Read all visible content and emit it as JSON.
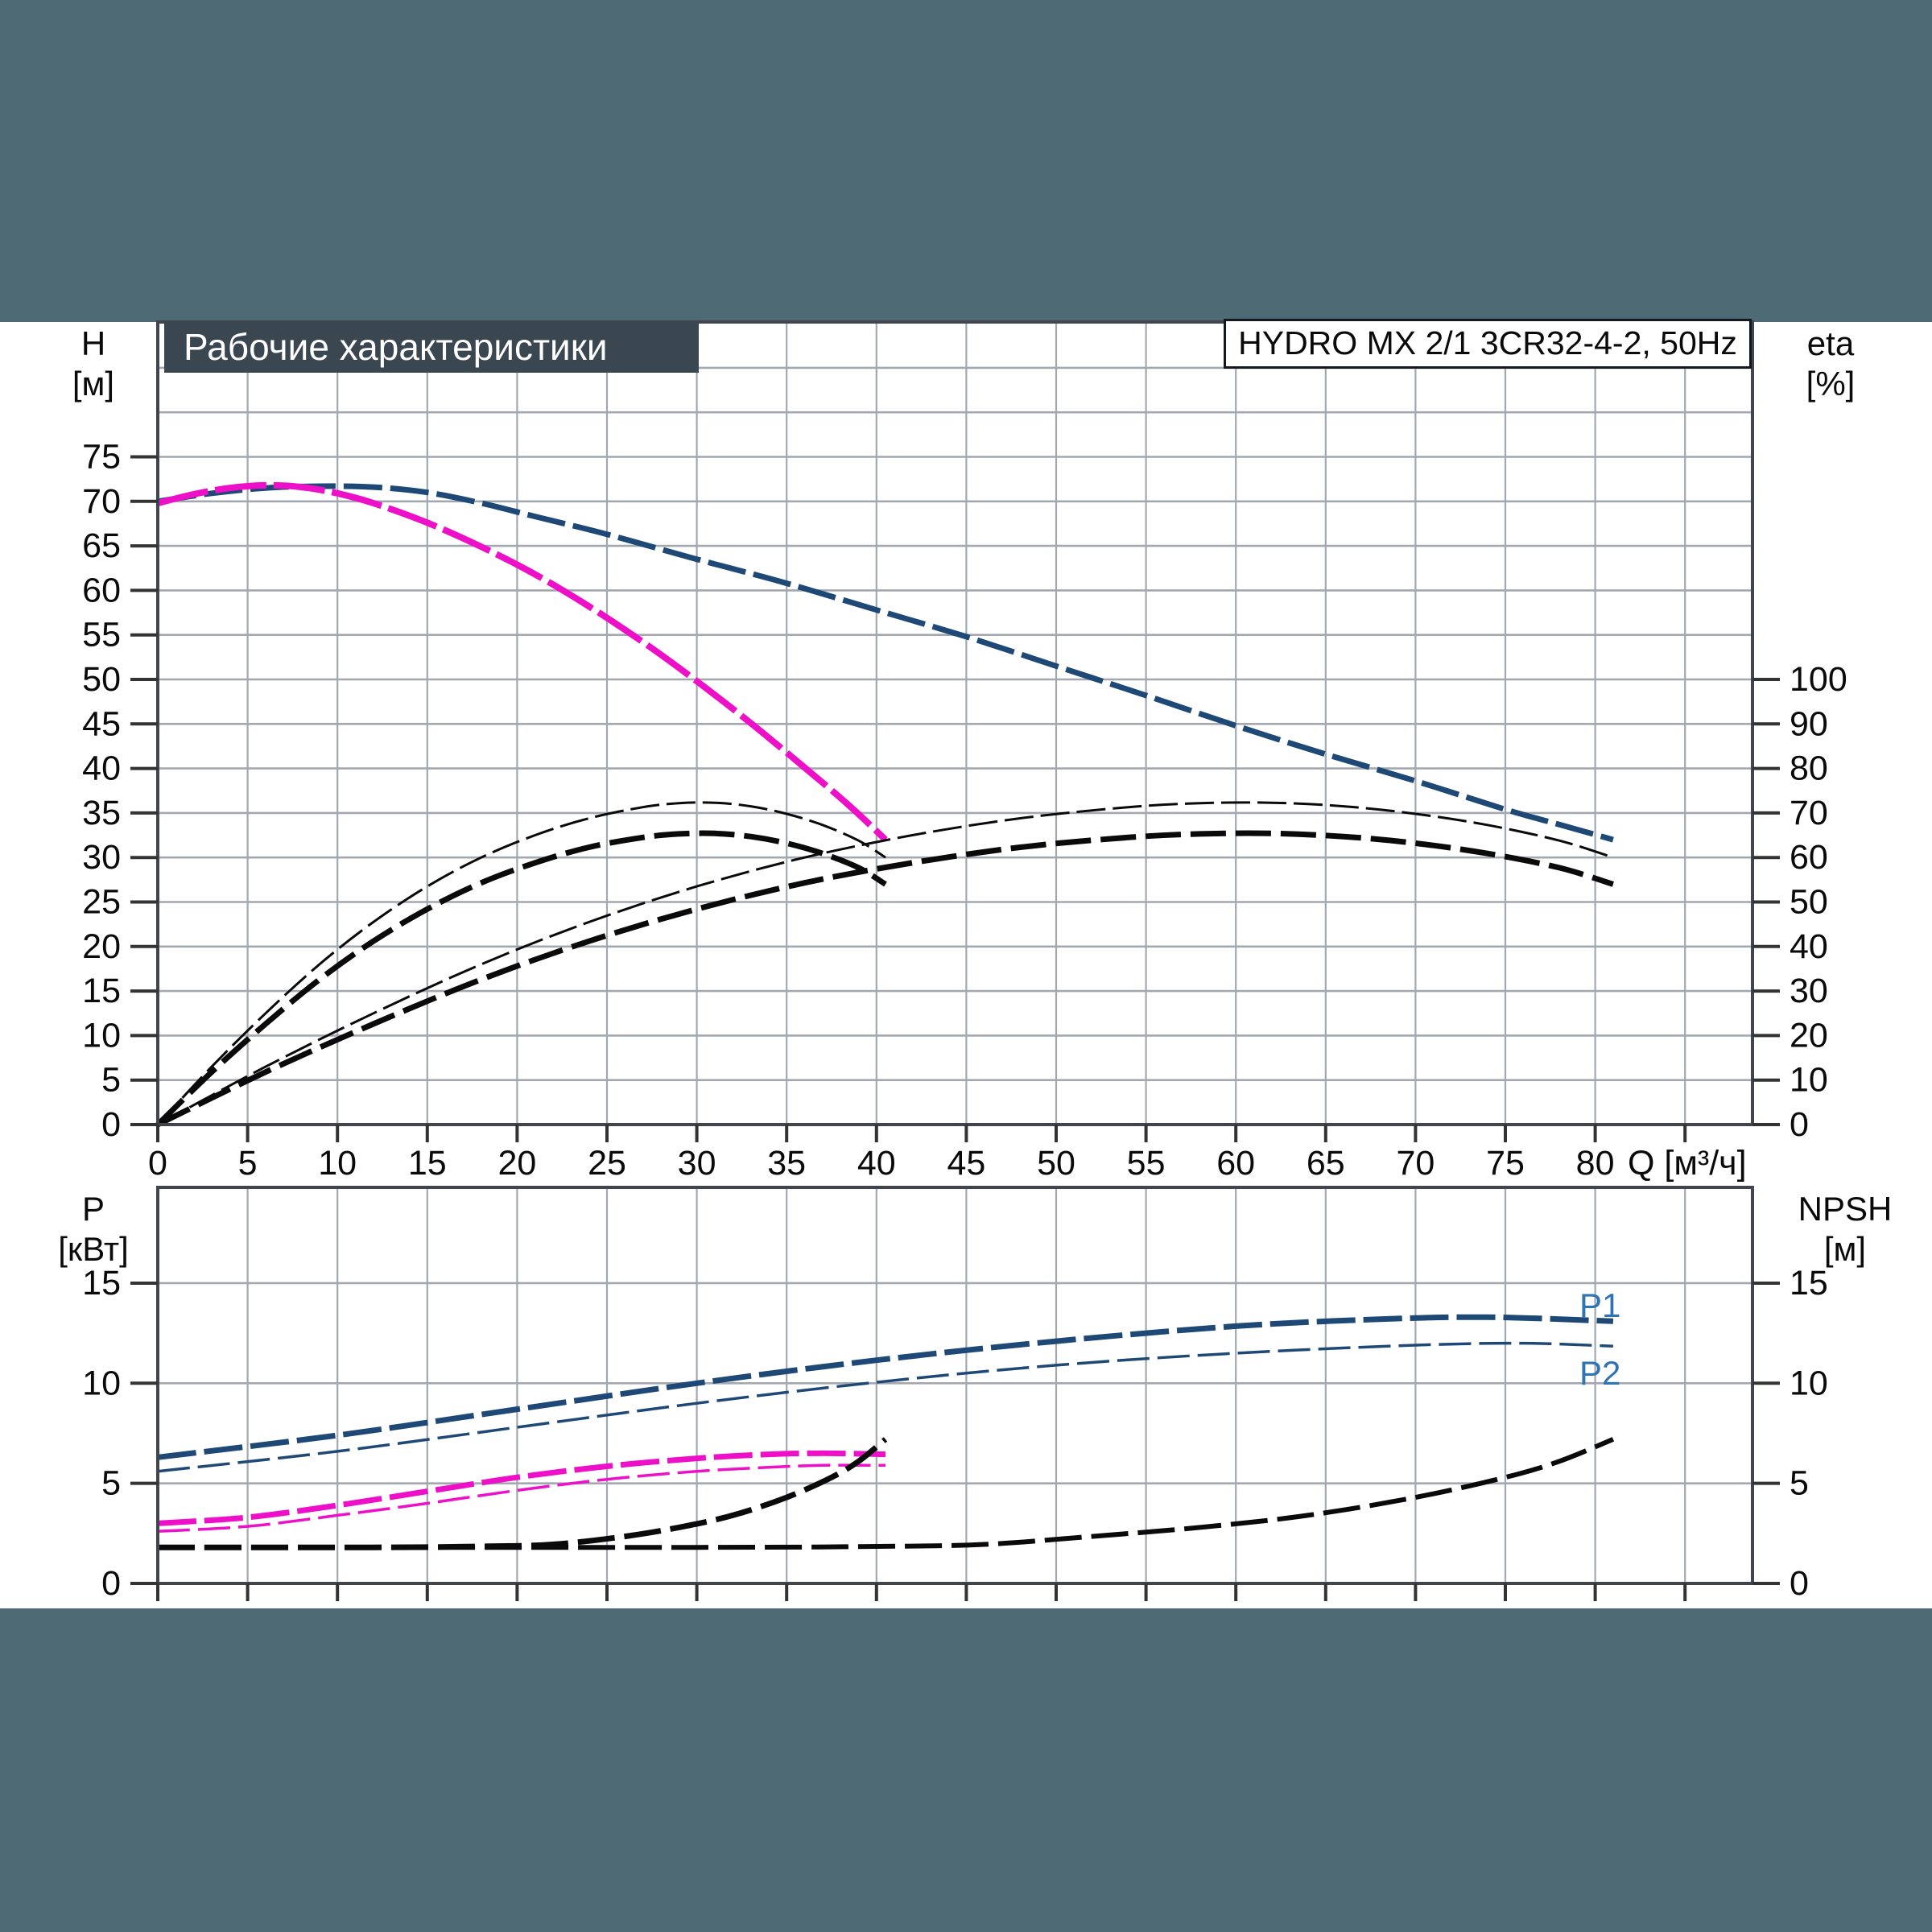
{
  "page": {
    "background": "#ffffff",
    "band_color": "#4e6a75"
  },
  "header": {
    "title": "Рабочие характеристики",
    "title_bg": "#3a4650",
    "model": "HYDRO MX 2/1 3CR32-4-2, 50Hz"
  },
  "axes_labels": {
    "head_symbol": "H",
    "head_unit": "[м]",
    "eff_symbol": "eta",
    "eff_unit": "[%]",
    "flow": "Q [м³/ч]",
    "power_symbol": "P",
    "power_unit": "[кВт]",
    "npsh_symbol": "NPSH",
    "npsh_unit": "[м]"
  },
  "curve_labels": {
    "p1": "P1",
    "p2": "P2"
  },
  "colors": {
    "navy": "#1e4976",
    "magenta": "#ee0fc8",
    "black": "#0a0a0a",
    "grid": "#a3a8b0",
    "frame": "#41464e",
    "tick": "#333333",
    "label_blue": "#2e74b5",
    "text": "#0a0a0a"
  },
  "chart_data": [
    {
      "id": "main",
      "type": "line",
      "title": "Рабочие характеристики",
      "x": {
        "label": "Q [м³/ч]",
        "min": 0,
        "max": 88.8,
        "grid_step": 5,
        "tick_labels": [
          0,
          5,
          10,
          15,
          20,
          25,
          30,
          35,
          40,
          45,
          50,
          55,
          60,
          65,
          70,
          75,
          80
        ],
        "tick_max": 85
      },
      "y_left": {
        "label": "H [м]",
        "min": 0,
        "max": 90.1,
        "grid_step": 5,
        "tick_labels": [
          0,
          5,
          10,
          15,
          20,
          25,
          30,
          35,
          40,
          45,
          50,
          55,
          60,
          65,
          70,
          75
        ]
      },
      "y_right": {
        "label": "eta [%]",
        "min": 0,
        "visible_max": 100,
        "tick_labels": [
          0,
          10,
          20,
          30,
          40,
          50,
          60,
          70,
          80,
          90,
          100
        ]
      },
      "series": [
        {
          "name": "head-2-pumps",
          "axis": "left",
          "color": "navy",
          "width": 7,
          "dash": "48 10",
          "points": [
            [
              0,
              70
            ],
            [
              3,
              70.9
            ],
            [
              6,
              71.5
            ],
            [
              9,
              71.7
            ],
            [
              12,
              71.6
            ],
            [
              15,
              71.0
            ],
            [
              18,
              69.8
            ],
            [
              21,
              68.3
            ],
            [
              25,
              66.3
            ],
            [
              30,
              63.5
            ],
            [
              35,
              60.8
            ],
            [
              40,
              57.8
            ],
            [
              45,
              54.8
            ],
            [
              50,
              51.5
            ],
            [
              55,
              48.2
            ],
            [
              60,
              44.8
            ],
            [
              65,
              41.6
            ],
            [
              70,
              38.6
            ],
            [
              75,
              35.4
            ],
            [
              78,
              33.7
            ],
            [
              81,
              32.0
            ]
          ]
        },
        {
          "name": "head-1-pump",
          "axis": "left",
          "color": "magenta",
          "width": 8,
          "dash": "64 9",
          "points": [
            [
              0,
              69.8
            ],
            [
              2,
              70.8
            ],
            [
              4,
              71.5
            ],
            [
              6,
              71.8
            ],
            [
              8,
              71.6
            ],
            [
              10,
              70.9
            ],
            [
              12,
              69.8
            ],
            [
              15,
              67.6
            ],
            [
              18,
              64.9
            ],
            [
              21,
              61.8
            ],
            [
              24,
              58.2
            ],
            [
              27,
              54.2
            ],
            [
              30,
              49.8
            ],
            [
              33,
              45.1
            ],
            [
              36,
              40.1
            ],
            [
              38.5,
              35.8
            ],
            [
              40.5,
              32.0
            ]
          ]
        },
        {
          "name": "eta-1-pump-thin",
          "axis": "right",
          "color": "black",
          "width": 3,
          "dash": "36 9",
          "points": [
            [
              0,
              0
            ],
            [
              3,
              13
            ],
            [
              6,
              25
            ],
            [
              9,
              36
            ],
            [
              12,
              45.5
            ],
            [
              15,
              53.5
            ],
            [
              18,
              60
            ],
            [
              21,
              65
            ],
            [
              24,
              68.8
            ],
            [
              27,
              71.3
            ],
            [
              29,
              72.2
            ],
            [
              31,
              72.3
            ],
            [
              33,
              71.5
            ],
            [
              35,
              69.8
            ],
            [
              37,
              67.3
            ],
            [
              39,
              63.8
            ],
            [
              40.5,
              60
            ]
          ]
        },
        {
          "name": "eta-1-pump-thick",
          "axis": "right",
          "color": "black",
          "width": 7,
          "dash": "44 12",
          "points": [
            [
              0,
              0
            ],
            [
              3,
              11.8
            ],
            [
              6,
              22.6
            ],
            [
              9,
              32.6
            ],
            [
              12,
              41.2
            ],
            [
              15,
              48.4
            ],
            [
              18,
              54.3
            ],
            [
              21,
              58.8
            ],
            [
              24,
              62.3
            ],
            [
              27,
              64.5
            ],
            [
              29,
              65.3
            ],
            [
              31,
              65.4
            ],
            [
              33,
              64.7
            ],
            [
              35,
              63.2
            ],
            [
              37,
              60.9
            ],
            [
              39,
              57.7
            ],
            [
              40.5,
              54
            ]
          ]
        },
        {
          "name": "eta-2-pumps-thin",
          "axis": "right",
          "color": "black",
          "width": 3,
          "dash": "36 9",
          "points": [
            [
              0,
              0
            ],
            [
              6,
              13
            ],
            [
              12,
              25
            ],
            [
              18,
              36
            ],
            [
              24,
              45.5
            ],
            [
              30,
              53.5
            ],
            [
              36,
              60
            ],
            [
              42,
              65
            ],
            [
              48,
              68.8
            ],
            [
              54,
              71.3
            ],
            [
              58,
              72.2
            ],
            [
              62,
              72.3
            ],
            [
              66,
              71.5
            ],
            [
              70,
              69.8
            ],
            [
              74,
              67.3
            ],
            [
              78,
              63.8
            ],
            [
              81,
              60
            ]
          ]
        },
        {
          "name": "eta-2-pumps-thick",
          "axis": "right",
          "color": "black",
          "width": 7,
          "dash": "44 12",
          "points": [
            [
              0,
              0
            ],
            [
              6,
              11.8
            ],
            [
              12,
              22.6
            ],
            [
              18,
              32.6
            ],
            [
              24,
              41.2
            ],
            [
              30,
              48.4
            ],
            [
              36,
              54.3
            ],
            [
              42,
              58.8
            ],
            [
              48,
              62.3
            ],
            [
              54,
              64.5
            ],
            [
              58,
              65.3
            ],
            [
              62,
              65.4
            ],
            [
              66,
              64.7
            ],
            [
              70,
              63.2
            ],
            [
              74,
              60.9
            ],
            [
              78,
              57.7
            ],
            [
              81,
              54
            ]
          ]
        }
      ]
    },
    {
      "id": "power",
      "type": "line",
      "x": {
        "label": "",
        "min": 0,
        "max": 88.8,
        "grid_step": 5,
        "tick_labels": [],
        "tick_max": 85
      },
      "y_left": {
        "label": "P [кВт]",
        "min": 0,
        "max": 19.8,
        "grid_step": 5,
        "tick_labels": [
          0,
          5,
          10,
          15
        ]
      },
      "y_right": {
        "label": "NPSH [м]",
        "min": 0,
        "visible_max": 15,
        "tick_labels": [
          0,
          5,
          10,
          15
        ]
      },
      "series": [
        {
          "name": "p1-2-pumps",
          "axis": "left",
          "color": "navy",
          "width": 7,
          "dash": "48 10",
          "points": [
            [
              0,
              6.3
            ],
            [
              10,
              7.4
            ],
            [
              20,
              8.7
            ],
            [
              30,
              10.0
            ],
            [
              40,
              11.15
            ],
            [
              50,
              12.1
            ],
            [
              60,
              12.85
            ],
            [
              68,
              13.2
            ],
            [
              74,
              13.3
            ],
            [
              81,
              13.1
            ]
          ]
        },
        {
          "name": "p2-2-pumps",
          "axis": "left",
          "color": "navy",
          "width": 3.5,
          "dash": "40 10",
          "points": [
            [
              0,
              5.6
            ],
            [
              10,
              6.6
            ],
            [
              20,
              7.8
            ],
            [
              30,
              9.0
            ],
            [
              40,
              10.05
            ],
            [
              50,
              10.9
            ],
            [
              60,
              11.5
            ],
            [
              70,
              11.9
            ],
            [
              76,
              12.0
            ],
            [
              81,
              11.85
            ]
          ]
        },
        {
          "name": "p1-1-pump",
          "axis": "left",
          "color": "magenta",
          "width": 7,
          "dash": "48 10",
          "points": [
            [
              0,
              3.0
            ],
            [
              5,
              3.3
            ],
            [
              10,
              3.9
            ],
            [
              15,
              4.6
            ],
            [
              20,
              5.3
            ],
            [
              25,
              5.85
            ],
            [
              30,
              6.25
            ],
            [
              34,
              6.45
            ],
            [
              37,
              6.5
            ],
            [
              40.5,
              6.45
            ]
          ]
        },
        {
          "name": "p2-1-pump",
          "axis": "left",
          "color": "magenta",
          "width": 3.5,
          "dash": "40 10",
          "points": [
            [
              0,
              2.6
            ],
            [
              5,
              2.85
            ],
            [
              10,
              3.4
            ],
            [
              15,
              4.0
            ],
            [
              20,
              4.65
            ],
            [
              25,
              5.2
            ],
            [
              30,
              5.6
            ],
            [
              34,
              5.8
            ],
            [
              37,
              5.9
            ],
            [
              40.5,
              5.9
            ]
          ]
        },
        {
          "name": "npsh-1-pump",
          "axis": "right",
          "color": "black",
          "width": 7,
          "dash": "46 12",
          "points": [
            [
              0,
              1.8
            ],
            [
              12,
              1.8
            ],
            [
              18,
              1.85
            ],
            [
              22,
              1.95
            ],
            [
              26,
              2.35
            ],
            [
              29,
              2.8
            ],
            [
              32,
              3.4
            ],
            [
              35,
              4.3
            ],
            [
              37.5,
              5.3
            ],
            [
              39,
              6.1
            ],
            [
              40.5,
              7.2
            ]
          ]
        },
        {
          "name": "npsh-2-pumps",
          "axis": "right",
          "color": "black",
          "width": 6,
          "dash": "46 12",
          "points": [
            [
              0,
              1.8
            ],
            [
              30,
              1.8
            ],
            [
              40,
              1.85
            ],
            [
              46,
              1.95
            ],
            [
              52,
              2.35
            ],
            [
              58,
              2.8
            ],
            [
              64,
              3.4
            ],
            [
              70,
              4.3
            ],
            [
              75,
              5.3
            ],
            [
              78,
              6.1
            ],
            [
              81,
              7.2
            ]
          ]
        }
      ]
    }
  ]
}
